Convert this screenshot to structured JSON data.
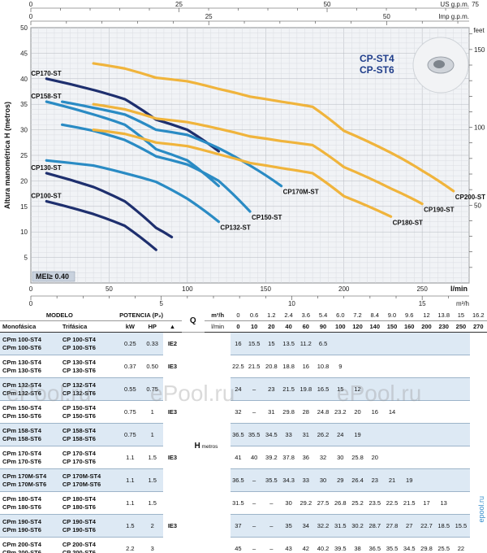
{
  "chart_data": {
    "type": "line",
    "title": "CP-ST4 CP-ST6",
    "title_lines": [
      "CP-ST4",
      "CP-ST6"
    ],
    "ylabel": "Altura manométrica H (metros)",
    "xlabel": "l/min",
    "secondary_ylabel": "feet",
    "top_axis_1_label": "US g.p.m.",
    "top_axis_2_label": "Imp g.p.m.",
    "bottom_axis_2_label": "m³/h",
    "mei_label": "MEI≥ 0.40",
    "xlim": [
      0,
      280
    ],
    "ylim": [
      0,
      50
    ],
    "x_ticks": [
      0,
      50,
      100,
      150,
      200,
      250
    ],
    "x_tick_labels": [
      "0",
      "50",
      "100",
      "150",
      "200",
      "250"
    ],
    "y_ticks": [
      5,
      10,
      15,
      20,
      25,
      30,
      35,
      40,
      45,
      50
    ],
    "y_tick_labels": [
      "5",
      "10",
      "15",
      "20",
      "25",
      "30",
      "35",
      "40",
      "45",
      "50"
    ],
    "feet_ticks": [
      50,
      100,
      150
    ],
    "feet_tick_labels": [
      "50",
      "100",
      "150"
    ],
    "usgpm_ticks": [
      0,
      25,
      50,
      75
    ],
    "usgpm_tick_labels": [
      "0",
      "25",
      "50",
      "75"
    ],
    "impgpm_ticks": [
      0,
      25,
      50
    ],
    "impgpm_tick_labels": [
      "0",
      "25",
      "50"
    ],
    "m3h_ticks": [
      0,
      5,
      10,
      15
    ],
    "m3h_tick_labels": [
      "0",
      "5",
      "10",
      "15"
    ],
    "series": [
      {
        "name": "CP100-ST",
        "color": "#1e2f6e",
        "x": [
          10,
          40,
          60,
          80
        ],
        "y": [
          16,
          13.5,
          11.2,
          6.5
        ]
      },
      {
        "name": "CP130-ST",
        "color": "#1e2f6e",
        "x": [
          10,
          40,
          60,
          80,
          90
        ],
        "y": [
          21.5,
          18.8,
          16,
          10.8,
          9
        ]
      },
      {
        "name": "CP132-ST",
        "color": "#2a8bc4",
        "x": [
          10,
          40,
          60,
          80,
          100,
          120
        ],
        "y": [
          24,
          23,
          21.5,
          19.8,
          16.5,
          12
        ]
      },
      {
        "name": "CP150-ST",
        "color": "#2a8bc4",
        "x": [
          20,
          40,
          60,
          80,
          100,
          120,
          140
        ],
        "y": [
          31,
          29.8,
          28,
          24.8,
          23.2,
          20,
          14
        ]
      },
      {
        "name": "CP158-ST",
        "color": "#2a8bc4",
        "x": [
          10,
          40,
          60,
          80,
          100,
          120
        ],
        "y": [
          35.5,
          33,
          31,
          26.2,
          24,
          19
        ]
      },
      {
        "name": "CP170-ST",
        "color": "#1e2f6e",
        "x": [
          10,
          40,
          60,
          80,
          100,
          120
        ],
        "y": [
          40,
          37.8,
          36,
          32,
          30,
          25.8
        ]
      },
      {
        "name": "CP170M-ST",
        "color": "#2a8bc4",
        "x": [
          20,
          40,
          60,
          80,
          100,
          120,
          140,
          160
        ],
        "y": [
          35.5,
          34.3,
          33,
          30,
          29,
          26.4,
          23,
          19
        ]
      },
      {
        "name": "CP180-ST",
        "color": "#f0b43c",
        "x": [
          40,
          60,
          80,
          100,
          120,
          140,
          160,
          180,
          200,
          230
        ],
        "y": [
          30,
          29.2,
          27.5,
          26.8,
          25.2,
          23.5,
          22.5,
          21.5,
          17,
          13
        ]
      },
      {
        "name": "CP190-ST",
        "color": "#f0b43c",
        "x": [
          40,
          60,
          80,
          100,
          120,
          140,
          160,
          180,
          200,
          230,
          250
        ],
        "y": [
          35,
          34,
          32.2,
          31.5,
          30.2,
          28.7,
          27.8,
          27,
          22.7,
          18.5,
          15.5
        ]
      },
      {
        "name": "CP200-ST",
        "color": "#f0b43c",
        "x": [
          40,
          60,
          80,
          100,
          120,
          140,
          160,
          180,
          200,
          230,
          250,
          270
        ],
        "y": [
          43,
          42,
          40.2,
          39.5,
          38,
          36.5,
          35.5,
          34.5,
          29.8,
          25.5,
          22,
          18
        ]
      }
    ]
  },
  "table": {
    "header": {
      "modelo": "MODELO",
      "potencia": "POTENCIA (P₂)",
      "monofasica": "Monofásica",
      "trifasica": "Trifásica",
      "kw": "kW",
      "hp": "HP",
      "ie_mark": "▲",
      "q": "Q",
      "m3h": "m³/h",
      "lmin": "l/min",
      "h": "H",
      "metros": "metros"
    },
    "q_m3h": [
      "0",
      "0.6",
      "1.2",
      "2.4",
      "3.6",
      "5.4",
      "6.0",
      "7.2",
      "8.4",
      "9.0",
      "9.6",
      "12",
      "13.8",
      "15",
      "16.2"
    ],
    "q_lmin": [
      "0",
      "10",
      "20",
      "40",
      "60",
      "90",
      "100",
      "120",
      "140",
      "150",
      "160",
      "200",
      "230",
      "250",
      "270"
    ],
    "rows": [
      {
        "mono": [
          "CPm 100-ST4",
          "CPm 100-ST6"
        ],
        "tri": [
          "CP 100-ST4",
          "CP 100-ST6"
        ],
        "kw": "0.25",
        "hp": "0.33",
        "ie": "IE2",
        "h": [
          "",
          "16",
          "15.5",
          "15",
          "13.5",
          "11.2",
          "6.5",
          "",
          "",
          "",
          "",
          "",
          "",
          "",
          ""
        ]
      },
      {
        "mono": [
          "CPm 130-ST4",
          "CPm 130-ST6"
        ],
        "tri": [
          "CP 130-ST4",
          "CP 130-ST6"
        ],
        "kw": "0.37",
        "hp": "0.50",
        "ie": "IE3",
        "h": [
          "",
          "22.5",
          "21.5",
          "20.8",
          "18.8",
          "16",
          "10.8",
          "9",
          "",
          "",
          "",
          "",
          "",
          "",
          ""
        ]
      },
      {
        "mono": [
          "CPm 132-ST4",
          "CPm 132-ST6"
        ],
        "tri": [
          "CP 132-ST4",
          "CP 132-ST6"
        ],
        "kw": "0.55",
        "hp": "0.75",
        "ie": "",
        "h": [
          "",
          "24",
          "–",
          "23",
          "21.5",
          "19.8",
          "16.5",
          "15",
          "12",
          "",
          "",
          "",
          "",
          "",
          ""
        ]
      },
      {
        "mono": [
          "CPm 150-ST4",
          "CPm 150-ST6"
        ],
        "tri": [
          "CP 150-ST4",
          "CP 150-ST6"
        ],
        "kw": "0.75",
        "hp": "1",
        "ie": "IE3",
        "h": [
          "",
          "32",
          "–",
          "31",
          "29.8",
          "28",
          "24.8",
          "23.2",
          "20",
          "16",
          "14",
          "",
          "",
          "",
          ""
        ]
      },
      {
        "mono": [
          "CPm 158-ST4",
          "CPm 158-ST6"
        ],
        "tri": [
          "CP 158-ST4",
          "CP 158-ST6"
        ],
        "kw": "0.75",
        "hp": "1",
        "ie": "",
        "h": [
          "",
          "36.5",
          "35.5",
          "34.5",
          "33",
          "31",
          "26.2",
          "24",
          "19",
          "",
          "",
          "",
          "",
          "",
          ""
        ]
      },
      {
        "mono": [
          "CPm 170-ST4",
          "CPm 170-ST6"
        ],
        "tri": [
          "CP 170-ST4",
          "CP 170-ST6"
        ],
        "kw": "1.1",
        "hp": "1.5",
        "ie": "IE3",
        "h": [
          "",
          "41",
          "40",
          "39.2",
          "37.8",
          "36",
          "32",
          "30",
          "25.8",
          "20",
          "",
          "",
          "",
          "",
          ""
        ]
      },
      {
        "mono": [
          "CPm 170M-ST4",
          "CPm 170M-ST6"
        ],
        "tri": [
          "CP 170M-ST4",
          "CP 170M-ST6"
        ],
        "kw": "1.1",
        "hp": "1.5",
        "ie": "",
        "h": [
          "",
          "36.5",
          "–",
          "35.5",
          "34.3",
          "33",
          "30",
          "29",
          "26.4",
          "23",
          "21",
          "19",
          "",
          "",
          ""
        ]
      },
      {
        "mono": [
          "CPm 180-ST4",
          "CPm 180-ST6"
        ],
        "tri": [
          "CP 180-ST4",
          "CP 180-ST6"
        ],
        "kw": "1.1",
        "hp": "1.5",
        "ie": "",
        "h": [
          "",
          "31.5",
          "–",
          "–",
          "30",
          "29.2",
          "27.5",
          "26.8",
          "25.2",
          "23.5",
          "22.5",
          "21.5",
          "17",
          "13",
          ""
        ]
      },
      {
        "mono": [
          "CPm 190-ST4",
          "CPm 190-ST6"
        ],
        "tri": [
          "CP 190-ST4",
          "CP 190-ST6"
        ],
        "kw": "1.5",
        "hp": "2",
        "ie": "IE3",
        "h": [
          "",
          "37",
          "–",
          "–",
          "35",
          "34",
          "32.2",
          "31.5",
          "30.2",
          "28.7",
          "27.8",
          "27",
          "22.7",
          "18.5",
          "15.5"
        ]
      },
      {
        "mono": [
          "CPm 200-ST4",
          "CPm 200-ST6"
        ],
        "tri": [
          "CP 200-ST4",
          "CP 200-ST6"
        ],
        "kw": "2.2",
        "hp": "3",
        "ie": "",
        "h": [
          "",
          "45",
          "–",
          "–",
          "43",
          "42",
          "40.2",
          "39.5",
          "38",
          "36.5",
          "35.5",
          "34.5",
          "29.8",
          "25.5",
          "22"
        ]
      }
    ]
  },
  "watermark": {
    "text": "ePool.ru",
    "vertical": "epool.ru"
  }
}
